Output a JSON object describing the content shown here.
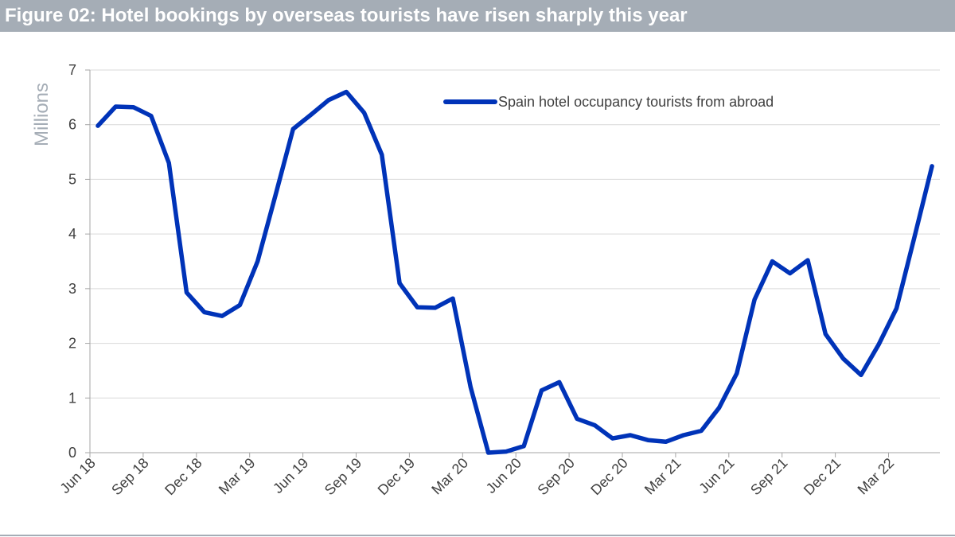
{
  "header": {
    "title": "Figure 02: Hotel bookings by overseas tourists have risen sharply this year"
  },
  "colors": {
    "title_bar": "#a5adb6",
    "series": "#0033b8",
    "grid": "#d9d9d9",
    "axis_label": "#a5adb6"
  },
  "chart_data": {
    "type": "line",
    "title": "Figure 02: Hotel bookings by overseas tourists have risen sharply this year",
    "xlabel": "",
    "ylabel": "Millions",
    "ylim": [
      0,
      7
    ],
    "yticks": [
      0,
      1,
      2,
      3,
      4,
      5,
      6,
      7
    ],
    "grid": "horizontal",
    "legend_position": "top-right",
    "x_tick_labels": [
      "Jun 18",
      "Sep 18",
      "Dec 18",
      "Mar 19",
      "Jun 19",
      "Sep 19",
      "Dec 19",
      "Mar 20",
      "Jun 20",
      "Sep 20",
      "Dec 20",
      "Mar 21",
      "Jun 21",
      "Sep 21",
      "Dec 21",
      "Mar 22"
    ],
    "x": [
      "2018-06",
      "2018-07",
      "2018-08",
      "2018-09",
      "2018-10",
      "2018-11",
      "2018-12",
      "2019-01",
      "2019-02",
      "2019-03",
      "2019-04",
      "2019-05",
      "2019-06",
      "2019-07",
      "2019-08",
      "2019-09",
      "2019-10",
      "2019-11",
      "2019-12",
      "2020-01",
      "2020-02",
      "2020-03",
      "2020-04",
      "2020-05",
      "2020-06",
      "2020-07",
      "2020-08",
      "2020-09",
      "2020-10",
      "2020-11",
      "2020-12",
      "2021-01",
      "2021-02",
      "2021-03",
      "2021-04",
      "2021-05",
      "2021-06",
      "2021-07",
      "2021-08",
      "2021-09",
      "2021-10",
      "2021-11",
      "2021-12",
      "2022-01",
      "2022-02",
      "2022-03",
      "2022-04",
      "2022-05"
    ],
    "series": [
      {
        "name": "Spain hotel occupancy tourists from abroad",
        "color": "#0033b8",
        "values": [
          5.98,
          6.33,
          6.32,
          6.16,
          5.3,
          2.93,
          2.57,
          2.5,
          2.7,
          3.5,
          4.7,
          5.92,
          6.18,
          6.45,
          6.6,
          6.22,
          5.45,
          3.1,
          2.66,
          2.65,
          2.82,
          1.2,
          0.0,
          0.02,
          0.12,
          1.14,
          1.29,
          0.62,
          0.5,
          0.26,
          0.32,
          0.23,
          0.2,
          0.32,
          0.4,
          0.82,
          1.45,
          2.8,
          3.5,
          3.28,
          3.52,
          2.17,
          1.72,
          1.42,
          1.98,
          2.64,
          3.93,
          5.24
        ]
      }
    ]
  }
}
